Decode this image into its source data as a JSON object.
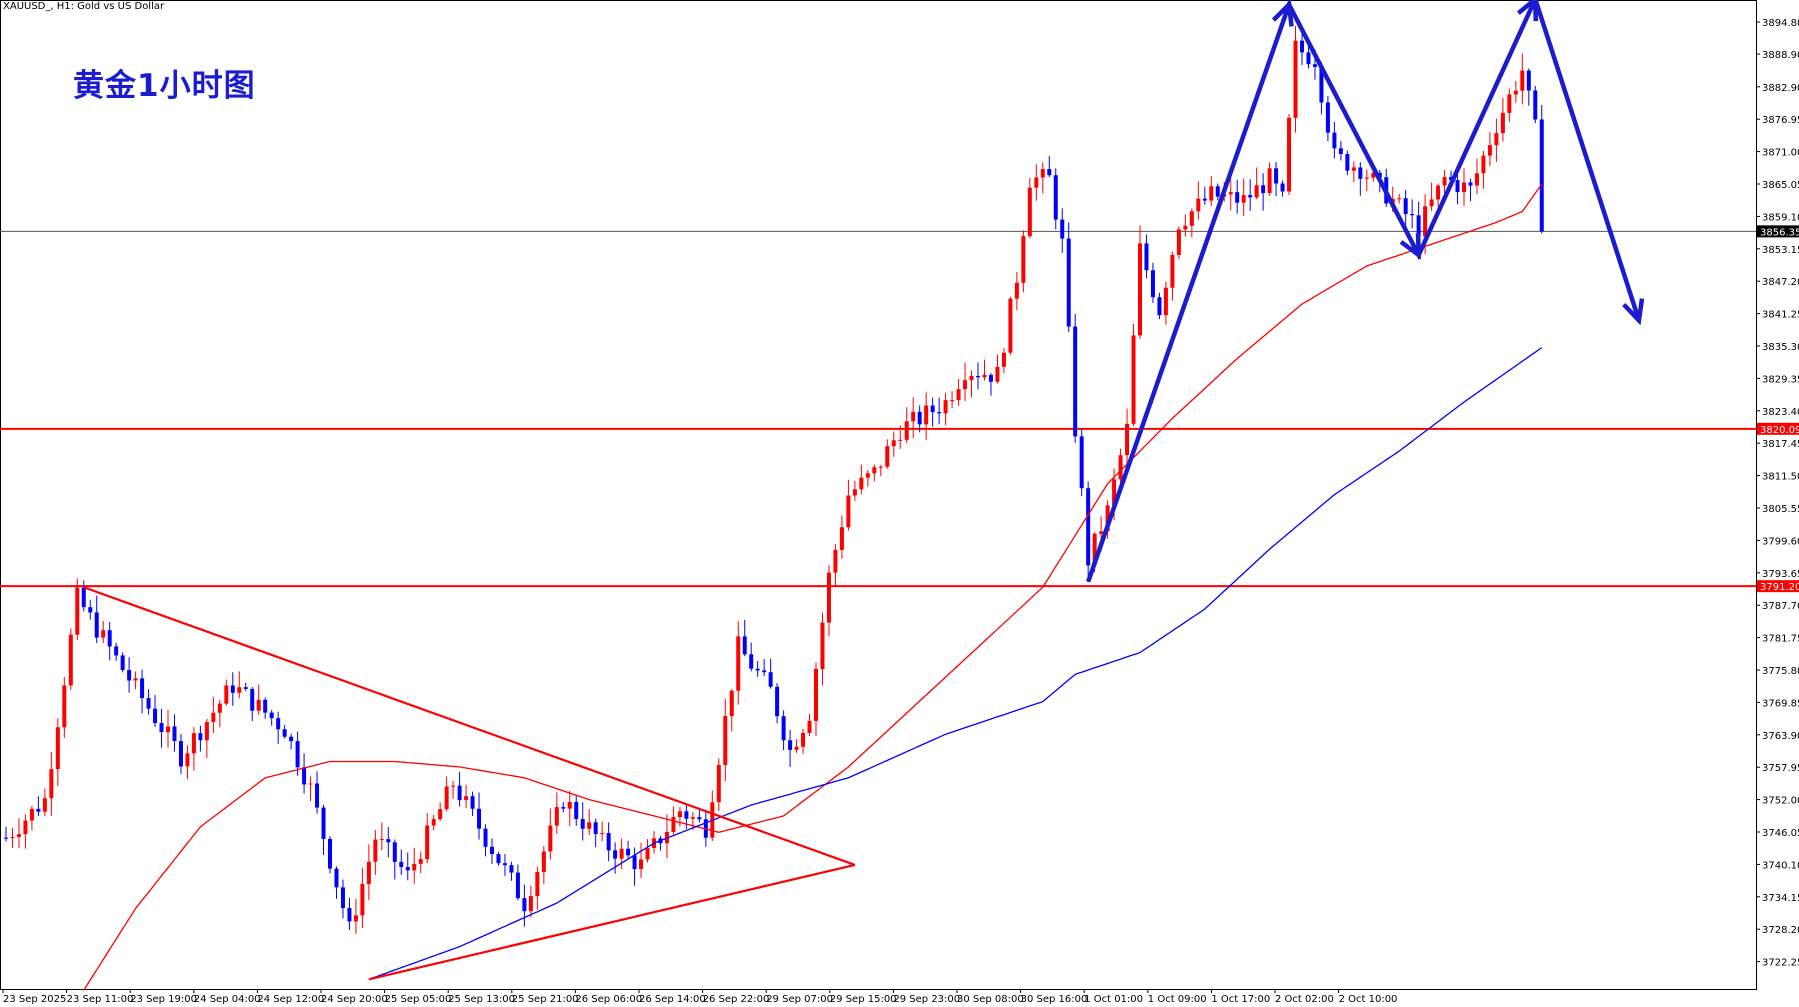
{
  "header": {
    "symbol_line": "XAUUSD_, H1:  Gold vs US Dollar"
  },
  "chart_data": {
    "type": "candlestick",
    "title": "黄金1小时图",
    "symbol": "XAUUSD_",
    "timeframe": "H1",
    "instrument": "Gold vs US Dollar",
    "ylim": [
      3717.0,
      3900.0
    ],
    "y_ticks": [
      "3894.80",
      "3888.90",
      "3882.90",
      "3876.95",
      "3871.00",
      "3865.05",
      "3859.10",
      "3853.15",
      "3847.20",
      "3841.25",
      "3835.30",
      "3829.35",
      "3823.40",
      "3817.45",
      "3811.50",
      "3805.55",
      "3799.60",
      "3793.65",
      "3787.70",
      "3781.75",
      "3775.80",
      "3769.85",
      "3763.90",
      "3757.95",
      "3752.00",
      "3746.05",
      "3740.10",
      "3734.15",
      "3728.20",
      "3722.25"
    ],
    "x_ticks": [
      "23 Sep 2025",
      "23 Sep 11:00",
      "23 Sep 19:00",
      "24 Sep 04:00",
      "24 Sep 12:00",
      "24 Sep 20:00",
      "25 Sep 05:00",
      "25 Sep 13:00",
      "25 Sep 21:00",
      "26 Sep 06:00",
      "26 Sep 14:00",
      "26 Sep 22:00",
      "29 Sep 07:00",
      "29 Sep 15:00",
      "29 Sep 23:00",
      "30 Sep 08:00",
      "30 Sep 16:00",
      "1 Oct 01:00",
      "1 Oct 09:00",
      "1 Oct 17:00",
      "2 Oct 02:00",
      "2 Oct 10:00"
    ],
    "current_price": "3856.35",
    "horizontal_levels": [
      {
        "price": 3820.09,
        "label": "3820.09",
        "color": "#ff0000"
      },
      {
        "price": 3791.2,
        "label": "3791.20",
        "color": "#ff0000"
      }
    ],
    "colors": {
      "bull": "#ff0000",
      "bear": "#0000ff",
      "ma_fast": "#ff0000",
      "ma_slow": "#0000ff",
      "annotation": "#1b1bd0",
      "trendline": "#ff0000"
    },
    "anchors": [
      {
        "i": 0,
        "p": 3745
      },
      {
        "i": 6,
        "p": 3752
      },
      {
        "i": 11,
        "p": 3789
      },
      {
        "i": 18,
        "p": 3776
      },
      {
        "i": 27,
        "p": 3760
      },
      {
        "i": 35,
        "p": 3773
      },
      {
        "i": 43,
        "p": 3765
      },
      {
        "i": 47,
        "p": 3754
      },
      {
        "i": 53,
        "p": 3728
      },
      {
        "i": 57,
        "p": 3745
      },
      {
        "i": 62,
        "p": 3738
      },
      {
        "i": 69,
        "p": 3755
      },
      {
        "i": 76,
        "p": 3741
      },
      {
        "i": 80,
        "p": 3733
      },
      {
        "i": 86,
        "p": 3752
      },
      {
        "i": 92,
        "p": 3744
      },
      {
        "i": 98,
        "p": 3740
      },
      {
        "i": 104,
        "p": 3750
      },
      {
        "i": 108,
        "p": 3747
      },
      {
        "i": 110,
        "p": 3760
      },
      {
        "i": 113,
        "p": 3780
      },
      {
        "i": 118,
        "p": 3772
      },
      {
        "i": 121,
        "p": 3761
      },
      {
        "i": 124,
        "p": 3768
      },
      {
        "i": 127,
        "p": 3793
      },
      {
        "i": 130,
        "p": 3808
      },
      {
        "i": 134,
        "p": 3812
      },
      {
        "i": 138,
        "p": 3820
      },
      {
        "i": 141,
        "p": 3822
      },
      {
        "i": 145,
        "p": 3825
      },
      {
        "i": 148,
        "p": 3831
      },
      {
        "i": 153,
        "p": 3830
      },
      {
        "i": 156,
        "p": 3848
      },
      {
        "i": 158,
        "p": 3866
      },
      {
        "i": 161,
        "p": 3866
      },
      {
        "i": 163,
        "p": 3854
      },
      {
        "i": 165,
        "p": 3820
      },
      {
        "i": 167,
        "p": 3796
      },
      {
        "i": 170,
        "p": 3805
      },
      {
        "i": 173,
        "p": 3820
      },
      {
        "i": 175,
        "p": 3853
      },
      {
        "i": 178,
        "p": 3842
      },
      {
        "i": 181,
        "p": 3858
      },
      {
        "i": 186,
        "p": 3863
      },
      {
        "i": 191,
        "p": 3862
      },
      {
        "i": 195,
        "p": 3866
      },
      {
        "i": 197,
        "p": 3862
      },
      {
        "i": 199,
        "p": 3890
      },
      {
        "i": 202,
        "p": 3888
      },
      {
        "i": 205,
        "p": 3870
      },
      {
        "i": 209,
        "p": 3868
      },
      {
        "i": 214,
        "p": 3862
      },
      {
        "i": 218,
        "p": 3857
      },
      {
        "i": 222,
        "p": 3866
      },
      {
        "i": 226,
        "p": 3864
      },
      {
        "i": 230,
        "p": 3876
      },
      {
        "i": 234,
        "p": 3886
      },
      {
        "i": 236,
        "p": 3875
      },
      {
        "i": 237,
        "p": 3857
      }
    ],
    "ma_fast_points": [
      {
        "i": 12,
        "p": 3717
      },
      {
        "i": 20,
        "p": 3732
      },
      {
        "i": 30,
        "p": 3747
      },
      {
        "i": 40,
        "p": 3756
      },
      {
        "i": 50,
        "p": 3759
      },
      {
        "i": 60,
        "p": 3759
      },
      {
        "i": 70,
        "p": 3758
      },
      {
        "i": 80,
        "p": 3756
      },
      {
        "i": 90,
        "p": 3752
      },
      {
        "i": 100,
        "p": 3749
      },
      {
        "i": 110,
        "p": 3746
      },
      {
        "i": 120,
        "p": 3749
      },
      {
        "i": 130,
        "p": 3758
      },
      {
        "i": 140,
        "p": 3769
      },
      {
        "i": 150,
        "p": 3780
      },
      {
        "i": 160,
        "p": 3791
      },
      {
        "i": 170,
        "p": 3810
      },
      {
        "i": 180,
        "p": 3822
      },
      {
        "i": 190,
        "p": 3833
      },
      {
        "i": 200,
        "p": 3843
      },
      {
        "i": 210,
        "p": 3850
      },
      {
        "i": 220,
        "p": 3854
      },
      {
        "i": 230,
        "p": 3858
      },
      {
        "i": 234,
        "p": 3860
      },
      {
        "i": 237,
        "p": 3865
      }
    ],
    "ma_slow_points": [
      {
        "i": 56,
        "p": 3719
      },
      {
        "i": 70,
        "p": 3725
      },
      {
        "i": 85,
        "p": 3733
      },
      {
        "i": 100,
        "p": 3744
      },
      {
        "i": 115,
        "p": 3751
      },
      {
        "i": 130,
        "p": 3756
      },
      {
        "i": 145,
        "p": 3764
      },
      {
        "i": 160,
        "p": 3770
      },
      {
        "i": 165,
        "p": 3775
      },
      {
        "i": 175,
        "p": 3779
      },
      {
        "i": 185,
        "p": 3787
      },
      {
        "i": 195,
        "p": 3798
      },
      {
        "i": 205,
        "p": 3808
      },
      {
        "i": 215,
        "p": 3816
      },
      {
        "i": 225,
        "p": 3825
      },
      {
        "i": 237,
        "p": 3835
      }
    ],
    "triangle": {
      "upper": [
        {
          "i": 12,
          "p": 3791
        },
        {
          "i": 131,
          "p": 3740
        }
      ],
      "lower": [
        {
          "i": 56,
          "p": 3719
        },
        {
          "i": 131,
          "p": 3740
        }
      ]
    },
    "zigzag": [
      {
        "i": 167,
        "p": 3792
      },
      {
        "i": 198,
        "p": 3898
      },
      {
        "i": 218,
        "p": 3852
      },
      {
        "i": 236,
        "p": 3899
      },
      {
        "i": 252,
        "p": 3840
      }
    ]
  }
}
